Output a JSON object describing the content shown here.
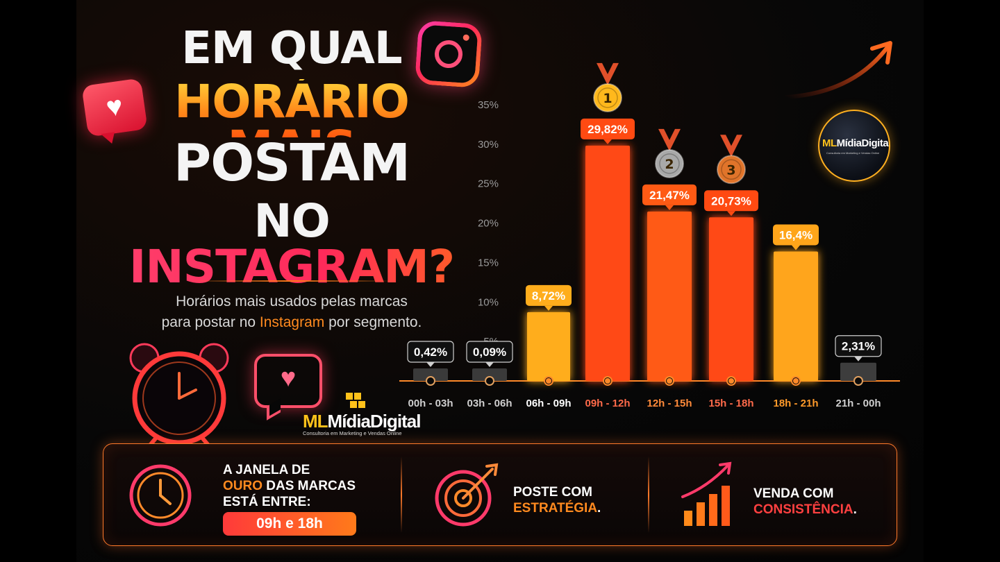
{
  "title": {
    "line1": "EM QUAL",
    "line2": "HORÁRIO MAIS",
    "line3": "POSTAM",
    "line4_no": "NO",
    "line4_ig": "INSTAGRAM?"
  },
  "subtitle": {
    "line1": "Horários mais usados pelas marcas",
    "line2_pre": "para postar no ",
    "line2_hl": "Instagram",
    "line2_post": " por segmento."
  },
  "brand": {
    "ml": "ML",
    "name": "MídiaDigital",
    "tagline": "Consultoria em Marketing e Vendas Online"
  },
  "colors": {
    "gold": "#ffb21f",
    "orange": "#ff7a12",
    "red_orange": "#ff4a12",
    "gray": "#3a3a3a",
    "accent": "#ff8a1f",
    "pink": "#ff2a5a"
  },
  "chart_data": {
    "type": "bar",
    "categories": [
      "00h - 03h",
      "03h - 06h",
      "06h - 09h",
      "09h - 12h",
      "12h - 15h",
      "15h - 18h",
      "18h - 21h",
      "21h - 00h"
    ],
    "values": [
      0.42,
      0.09,
      8.72,
      29.82,
      21.47,
      20.73,
      16.4,
      2.31
    ],
    "value_labels": [
      "0,42%",
      "0,09%",
      "8,72%",
      "29,82%",
      "21,47%",
      "20,73%",
      "16,4%",
      "2,31%"
    ],
    "yticks": [
      "5%",
      "10%",
      "15%",
      "20%",
      "25%",
      "30%",
      "35%"
    ],
    "ylim": [
      0,
      35
    ],
    "bar_colors": [
      "#3a3a3a",
      "#3a3a3a",
      "#ffad1c",
      "#ff4a12",
      "#ff5a14",
      "#ff4a12",
      "#ffa51a",
      "#3d3d3d"
    ],
    "label_colors": [
      "#cfcfcf",
      "#cfcfcf",
      "#ffffff",
      "#ff6a4a",
      "#ff8a3a",
      "#ff6a4a",
      "#ff9a2a",
      "#cfcfcf"
    ],
    "medals": [
      {
        "category": "09h - 12h",
        "rank": "1",
        "color": "#ffb81c"
      },
      {
        "category": "12h - 15h",
        "rank": "2",
        "color": "#a9a9a9"
      },
      {
        "category": "15h - 18h",
        "rank": "3",
        "color": "#e0742a"
      }
    ],
    "grid": false
  },
  "strip": {
    "item1": {
      "line1": "A JANELA DE",
      "line2_accent": "OURO",
      "line2_rest": " DAS MARCAS",
      "line3": "ESTÁ ENTRE:",
      "pill": "09h e 18h"
    },
    "item2": {
      "line1": "POSTE COM",
      "line2": "ESTRATÉGIA",
      "dot": "."
    },
    "item3": {
      "line1": "VENDA COM",
      "line2": "CONSISTÊNCIA",
      "dot": "."
    }
  },
  "icons": [
    "heart-bubble-icon",
    "instagram-icon",
    "trend-arrow-icon",
    "alarm-clock-icon",
    "heart-outline-bubble-icon",
    "medal-icon",
    "clock-icon",
    "target-arrow-icon",
    "growth-bars-icon"
  ]
}
